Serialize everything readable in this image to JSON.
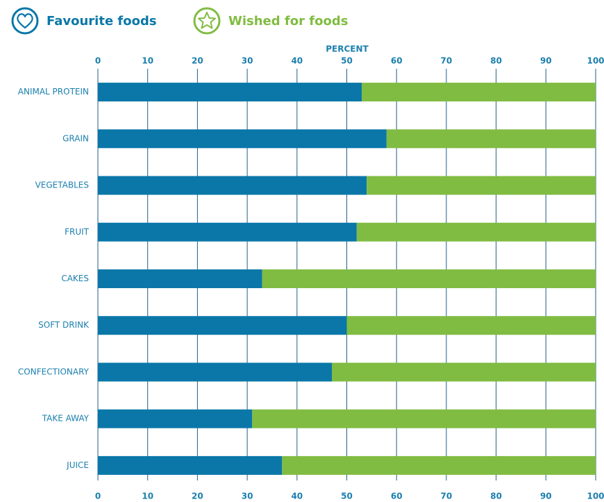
{
  "chart_data": {
    "type": "stacked_barh",
    "x_label": "PERCENT",
    "categories": [
      "ANIMAL PROTEIN",
      "GRAIN",
      "VEGETABLES",
      "FRUIT",
      "CAKES",
      "SOFT DRINK",
      "CONFECTIONARY",
      "TAKE AWAY",
      "JUICE"
    ],
    "series": [
      {
        "name": "Favourite foods",
        "color": "#0a77a8",
        "values": [
          53,
          58,
          54,
          52,
          33,
          50,
          47,
          31,
          37
        ]
      },
      {
        "name": "Wished for foods",
        "color": "#80bc42",
        "values": [
          47,
          42,
          46,
          48,
          67,
          50,
          53,
          69,
          63
        ]
      }
    ],
    "xlim": [
      0,
      100
    ],
    "xticks": [
      0,
      10,
      20,
      30,
      40,
      50,
      60,
      70,
      80,
      90,
      100
    ],
    "grid": true
  }
}
